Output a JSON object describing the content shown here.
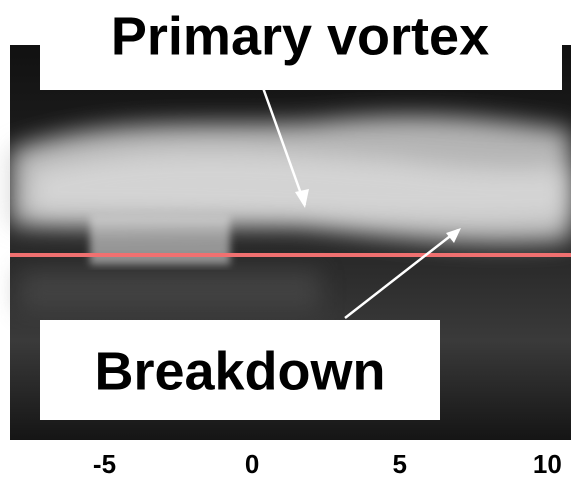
{
  "annotations": {
    "primary_vortex": "Primary vortex",
    "breakdown": "Breakdown"
  },
  "axis": {
    "xlim": [
      -8.2,
      10.8
    ],
    "ticks": [
      -5,
      0,
      5,
      10
    ]
  }
}
